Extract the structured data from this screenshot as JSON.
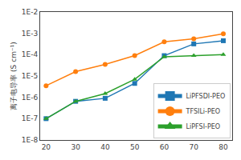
{
  "chart_data": {
    "type": "line",
    "x": [
      20,
      30,
      40,
      50,
      60,
      70,
      80
    ],
    "series": [
      {
        "name": "LiPFSDI-PEO",
        "marker": "square",
        "values": [
          1e-07,
          6.5e-07,
          9e-07,
          4.5e-06,
          9e-05,
          0.00032,
          0.00045
        ]
      },
      {
        "name": "TFSILi-PEO",
        "marker": "circle",
        "values": [
          3.5e-06,
          1.6e-05,
          3.5e-05,
          9e-05,
          0.0004,
          0.00055,
          0.00095
        ]
      },
      {
        "name": "LiPFSI-PEO",
        "marker": "triangle-up",
        "values": [
          1e-07,
          6.5e-07,
          1.5e-06,
          7e-06,
          8e-05,
          9e-05,
          0.0001
        ]
      }
    ],
    "ylabel": "离子电导率 (S cm⁻¹)",
    "log": "y",
    "xlim": [
      18,
      83
    ],
    "xticks": [
      20,
      30,
      40,
      50,
      60,
      70,
      80
    ],
    "ylim": [
      1e-08,
      0.01
    ],
    "yticks": [
      {
        "value": 1e-08,
        "label": "1E-8"
      },
      {
        "value": 1e-07,
        "label": "1E-7"
      },
      {
        "value": 1e-06,
        "label": "1E-6"
      },
      {
        "value": 1e-05,
        "label": "1E-5"
      },
      {
        "value": 0.0001,
        "label": "1E-4"
      },
      {
        "value": 0.001,
        "label": "1E-3"
      },
      {
        "value": 0.01,
        "label": "1E-2"
      }
    ],
    "grid": false,
    "legend": "lower right"
  }
}
